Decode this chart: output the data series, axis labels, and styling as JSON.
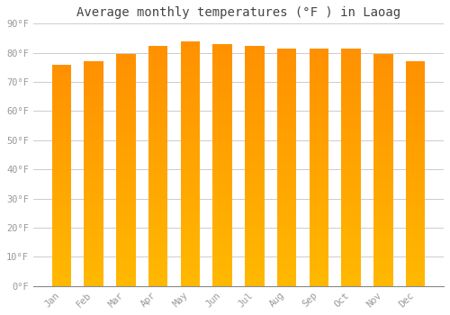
{
  "title": "Average monthly temperatures (°F ) in Laoag",
  "months": [
    "Jan",
    "Feb",
    "Mar",
    "Apr",
    "May",
    "Jun",
    "Jul",
    "Aug",
    "Sep",
    "Oct",
    "Nov",
    "Dec"
  ],
  "values": [
    76,
    77,
    79.5,
    82.5,
    84,
    83,
    82.5,
    81.5,
    81.5,
    81.5,
    79.5,
    77
  ],
  "bar_color_bottom": "#FFB800",
  "bar_color_top": "#FF9000",
  "background_color": "#FFFFFF",
  "plot_bg_color": "#FFFFFF",
  "grid_color": "#CCCCCC",
  "tick_label_color": "#999999",
  "title_color": "#444444",
  "ylim": [
    0,
    90
  ],
  "yticks": [
    0,
    10,
    20,
    30,
    40,
    50,
    60,
    70,
    80,
    90
  ],
  "ytick_labels": [
    "0°F",
    "10°F",
    "20°F",
    "30°F",
    "40°F",
    "50°F",
    "60°F",
    "70°F",
    "80°F",
    "90°F"
  ],
  "title_fontsize": 10,
  "tick_fontsize": 7.5,
  "bar_width": 0.6
}
